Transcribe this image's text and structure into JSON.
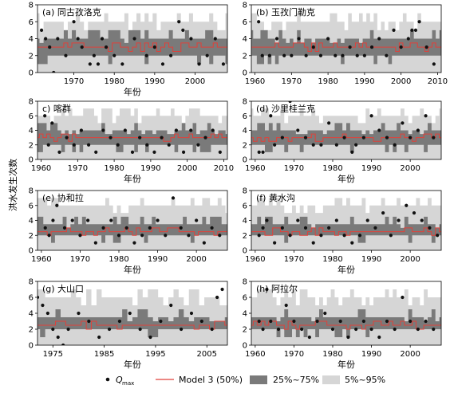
{
  "figure": {
    "ylabel": "洪水发生次数",
    "legend": {
      "qmax_label": "Q",
      "qmax_sub": "max",
      "model_label": "Model 3 (50%)",
      "iqr_label": "25%~75%",
      "outer_label": "5%~95%"
    },
    "colors": {
      "band_outer": "#d6d6d6",
      "band_iqr": "#7a7a7a",
      "median_line": "#e0413a",
      "dots": "#111111"
    }
  },
  "chart_data": [
    {
      "type": "scatter",
      "title": "(a) 同古孜洛克",
      "xlabel": "年份",
      "xlim": [
        1961,
        2008
      ],
      "ylim": [
        0,
        8
      ],
      "xticks": [
        1970,
        1980,
        1990,
        2000
      ],
      "yticks": [
        0,
        2,
        4,
        6,
        8
      ],
      "x": [
        1962,
        1963,
        1964,
        1965,
        1966,
        1968,
        1970,
        1971,
        1972,
        1974,
        1975,
        1976,
        1977,
        1978,
        1980,
        1982,
        1985,
        1988,
        1990,
        1992,
        1994,
        1996,
        1997,
        1999,
        2001,
        2003,
        2005,
        2007
      ],
      "y": [
        5,
        4,
        3,
        0,
        4,
        2,
        6,
        4,
        3,
        1,
        2,
        1,
        4,
        3,
        2,
        1,
        4,
        2,
        3,
        1,
        2,
        6,
        5,
        4,
        1,
        2,
        4,
        1
      ],
      "median": 3,
      "iqr": [
        2,
        4
      ],
      "band": [
        0,
        6
      ]
    },
    {
      "type": "scatter",
      "title": "(b) 玉孜门勒克",
      "xlabel": "",
      "xlim": [
        1959,
        2011
      ],
      "ylim": [
        0,
        8
      ],
      "xticks": [
        1960,
        1970,
        1980,
        1990,
        2000,
        2010
      ],
      "yticks": [
        0,
        2,
        4,
        6,
        8
      ],
      "x": [
        1961,
        1962,
        1964,
        1966,
        1968,
        1970,
        1972,
        1974,
        1976,
        1978,
        1980,
        1982,
        1984,
        1986,
        1988,
        1990,
        1992,
        1994,
        1996,
        1998,
        2000,
        2002,
        2003,
        2004,
        2005,
        2007,
        2009
      ],
      "y": [
        6,
        2,
        2,
        4,
        2,
        2,
        4,
        2,
        3,
        2,
        4,
        2,
        2,
        3,
        2,
        2,
        3,
        4,
        2,
        5,
        3,
        4,
        5,
        5,
        6,
        3,
        1
      ],
      "median": 3,
      "iqr": [
        2,
        4
      ],
      "band": [
        0,
        6
      ]
    },
    {
      "type": "scatter",
      "title": "c) 喀群",
      "xlabel": "年份",
      "xlim": [
        1959,
        2011
      ],
      "ylim": [
        0,
        8
      ],
      "xticks": [
        1960,
        1970,
        1980,
        1990,
        2000,
        2010
      ],
      "yticks": [
        0,
        2,
        4,
        6,
        8
      ],
      "x": [
        1961,
        1962,
        1963,
        1965,
        1967,
        1969,
        1971,
        1973,
        1975,
        1977,
        1979,
        1981,
        1983,
        1985,
        1987,
        1989,
        1991,
        1993,
        1995,
        1997,
        1999,
        2001,
        2003,
        2005,
        2007,
        2009
      ],
      "y": [
        6,
        2,
        5,
        1,
        3,
        2,
        4,
        2,
        1,
        4,
        3,
        2,
        4,
        1,
        3,
        2,
        1,
        3,
        2,
        4,
        1,
        4,
        2,
        3,
        4,
        1
      ],
      "median": 3,
      "iqr": [
        2,
        4
      ],
      "band": [
        0,
        6
      ]
    },
    {
      "type": "scatter",
      "title": "(d) 沙里桂兰克",
      "xlabel": "年份",
      "xlim": [
        1959,
        2008
      ],
      "ylim": [
        0,
        8
      ],
      "xticks": [
        1960,
        1970,
        1980,
        1990,
        2000
      ],
      "yticks": [
        0,
        2,
        4,
        6,
        8
      ],
      "x": [
        1961,
        1962,
        1964,
        1965,
        1967,
        1969,
        1971,
        1973,
        1975,
        1977,
        1979,
        1981,
        1983,
        1985,
        1986,
        1988,
        1990,
        1992,
        1994,
        1996,
        1998,
        2000,
        2002,
        2004,
        2006
      ],
      "y": [
        1,
        1,
        6,
        2,
        3,
        8,
        4,
        3,
        2,
        2,
        5,
        2,
        3,
        1,
        2,
        3,
        6,
        4,
        3,
        2,
        5,
        3,
        4,
        6,
        3
      ],
      "median": 3,
      "iqr": [
        2,
        4
      ],
      "band": [
        0,
        6
      ]
    },
    {
      "type": "scatter",
      "title": "(e) 协和拉",
      "xlabel": "年份",
      "xlim": [
        1959,
        2008
      ],
      "ylim": [
        0,
        8
      ],
      "xticks": [
        1960,
        1970,
        1980,
        1990,
        2000
      ],
      "yticks": [
        0,
        2,
        4,
        6,
        8
      ],
      "x": [
        1961,
        1962,
        1963,
        1964,
        1966,
        1968,
        1970,
        1972,
        1974,
        1976,
        1978,
        1980,
        1982,
        1984,
        1986,
        1988,
        1990,
        1992,
        1994,
        1996,
        1998,
        2000,
        2002,
        2004,
        2006
      ],
      "y": [
        3,
        2,
        4,
        6,
        3,
        4,
        2,
        4,
        1,
        3,
        4,
        2,
        3,
        1,
        2,
        3,
        4,
        2,
        7,
        3,
        2,
        4,
        1,
        3,
        2
      ],
      "median": 2.5,
      "iqr": [
        2,
        3.5
      ],
      "band": [
        0,
        6
      ]
    },
    {
      "type": "scatter",
      "title": "(f) 黄水沟",
      "xlabel": "年份",
      "xlim": [
        1959,
        2008
      ],
      "ylim": [
        0,
        8
      ],
      "xticks": [
        1960,
        1970,
        1980,
        1990,
        2000
      ],
      "yticks": [
        0,
        2,
        4,
        6,
        8
      ],
      "x": [
        1961,
        1962,
        1963,
        1965,
        1967,
        1969,
        1971,
        1973,
        1975,
        1977,
        1979,
        1981,
        1983,
        1985,
        1987,
        1989,
        1991,
        1993,
        1995,
        1997,
        1999,
        2001,
        2003,
        2005,
        2007
      ],
      "y": [
        2,
        3,
        4,
        1,
        3,
        2,
        4,
        3,
        1,
        2,
        3,
        4,
        2,
        1,
        2,
        4,
        3,
        5,
        2,
        4,
        6,
        5,
        4,
        3,
        2
      ],
      "median": 2.5,
      "iqr": [
        2,
        3.5
      ],
      "band": [
        0,
        6
      ]
    },
    {
      "type": "scatter",
      "title": "(g) 大山口",
      "xlabel": "年份",
      "xlim": [
        1972,
        2009
      ],
      "ylim": [
        0,
        8
      ],
      "xticks": [
        1975,
        1985,
        1995,
        2005
      ],
      "yticks": [
        0,
        2,
        4,
        6,
        8
      ],
      "x": [
        1972,
        1973,
        1974,
        1975,
        1976,
        1977,
        1978,
        1980,
        1982,
        1984,
        1986,
        1988,
        1990,
        1992,
        1994,
        1996,
        1998,
        2000,
        2002,
        2004,
        2006,
        2007,
        2008
      ],
      "y": [
        6,
        5,
        4,
        2,
        1,
        0,
        2,
        4,
        3,
        1,
        2,
        3,
        4,
        2,
        1,
        3,
        5,
        2,
        4,
        3,
        2,
        6,
        7
      ],
      "median": 2.5,
      "iqr": [
        2,
        3.5
      ],
      "band": [
        0,
        6
      ]
    },
    {
      "type": "scatter",
      "title": "(h) 阿拉尔",
      "xlabel": "年份",
      "xlim": [
        1959,
        2008
      ],
      "ylim": [
        0,
        8
      ],
      "xticks": [
        1960,
        1970,
        1980,
        1990,
        2000
      ],
      "yticks": [
        0,
        2,
        4,
        6,
        8
      ],
      "x": [
        1961,
        1962,
        1963,
        1964,
        1966,
        1968,
        1970,
        1972,
        1974,
        1976,
        1978,
        1980,
        1982,
        1984,
        1986,
        1988,
        1990,
        1992,
        1994,
        1996,
        1998,
        2000,
        2002,
        2004,
        2006
      ],
      "y": [
        3,
        2,
        7,
        3,
        2,
        5,
        3,
        2,
        1,
        3,
        4,
        2,
        3,
        1,
        2,
        3,
        2,
        1,
        3,
        2,
        6,
        3,
        2,
        3,
        2
      ],
      "median": 2.5,
      "iqr": [
        2,
        3.5
      ],
      "band": [
        0,
        6
      ]
    }
  ]
}
